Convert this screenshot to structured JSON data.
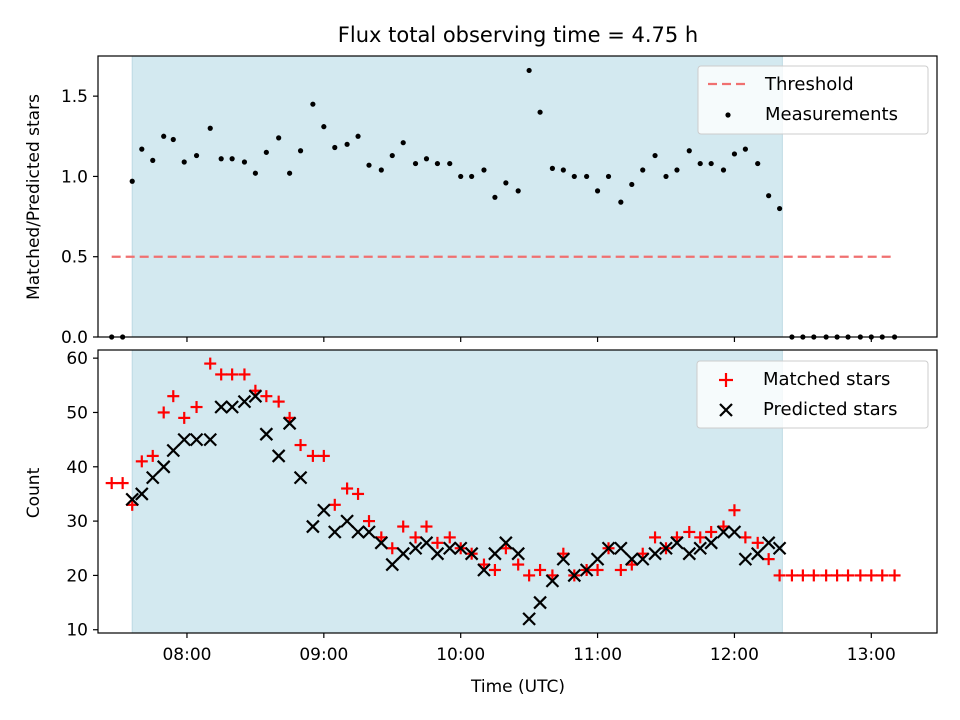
{
  "chart_data": [
    {
      "type": "scatter",
      "title": "Flux total observing time = 4.75 h",
      "xlabel": "",
      "ylabel": "Matched/Predicted stars",
      "ylim": [
        0,
        1.75
      ],
      "y_ticks": [
        "0.0",
        "0.5",
        "1.0",
        "1.5"
      ],
      "x_ticks_hours": [
        8,
        9,
        10,
        11,
        12,
        13
      ],
      "xlim_hours": [
        7.35,
        13.48
      ],
      "shaded_region_hours": [
        7.6,
        12.35
      ],
      "shade_color": "#d3e9f0",
      "legend_position": "top-right",
      "threshold": {
        "name": "Threshold",
        "y": 0.5,
        "x_range_hours": [
          7.45,
          13.15
        ],
        "color": "#f07070"
      },
      "series": [
        {
          "name": "Measurements",
          "marker": "dot",
          "color": "#000000",
          "points": [
            [
              7.45,
              0.0
            ],
            [
              7.53,
              0.0
            ],
            [
              7.6,
              0.97
            ],
            [
              7.67,
              1.17
            ],
            [
              7.75,
              1.1
            ],
            [
              7.83,
              1.25
            ],
            [
              7.9,
              1.23
            ],
            [
              7.98,
              1.09
            ],
            [
              8.07,
              1.13
            ],
            [
              8.17,
              1.3
            ],
            [
              8.25,
              1.11
            ],
            [
              8.33,
              1.11
            ],
            [
              8.42,
              1.09
            ],
            [
              8.5,
              1.02
            ],
            [
              8.58,
              1.15
            ],
            [
              8.67,
              1.24
            ],
            [
              8.75,
              1.02
            ],
            [
              8.83,
              1.16
            ],
            [
              8.92,
              1.45
            ],
            [
              9.0,
              1.31
            ],
            [
              9.08,
              1.18
            ],
            [
              9.17,
              1.2
            ],
            [
              9.25,
              1.25
            ],
            [
              9.33,
              1.07
            ],
            [
              9.42,
              1.04
            ],
            [
              9.5,
              1.13
            ],
            [
              9.58,
              1.21
            ],
            [
              9.67,
              1.08
            ],
            [
              9.75,
              1.11
            ],
            [
              9.83,
              1.08
            ],
            [
              9.92,
              1.08
            ],
            [
              10.0,
              1.0
            ],
            [
              10.08,
              1.0
            ],
            [
              10.17,
              1.04
            ],
            [
              10.25,
              0.87
            ],
            [
              10.33,
              0.96
            ],
            [
              10.42,
              0.91
            ],
            [
              10.5,
              1.66
            ],
            [
              10.58,
              1.4
            ],
            [
              10.67,
              1.05
            ],
            [
              10.75,
              1.04
            ],
            [
              10.83,
              1.0
            ],
            [
              10.92,
              1.0
            ],
            [
              11.0,
              0.91
            ],
            [
              11.08,
              1.0
            ],
            [
              11.17,
              0.84
            ],
            [
              11.25,
              0.95
            ],
            [
              11.33,
              1.04
            ],
            [
              11.42,
              1.13
            ],
            [
              11.5,
              1.0
            ],
            [
              11.58,
              1.04
            ],
            [
              11.67,
              1.16
            ],
            [
              11.75,
              1.08
            ],
            [
              11.83,
              1.08
            ],
            [
              11.92,
              1.04
            ],
            [
              12.0,
              1.14
            ],
            [
              12.08,
              1.17
            ],
            [
              12.17,
              1.08
            ],
            [
              12.25,
              0.88
            ],
            [
              12.33,
              0.8
            ],
            [
              12.42,
              0.0
            ],
            [
              12.5,
              0.0
            ],
            [
              12.58,
              0.0
            ],
            [
              12.67,
              0.0
            ],
            [
              12.75,
              0.0
            ],
            [
              12.83,
              0.0
            ],
            [
              12.92,
              0.0
            ],
            [
              13.0,
              0.0
            ],
            [
              13.08,
              0.0
            ],
            [
              13.17,
              0.0
            ]
          ]
        }
      ]
    },
    {
      "type": "scatter",
      "xlabel": "Time (UTC)",
      "ylabel": "Count",
      "ylim": [
        9.4,
        61.5
      ],
      "y_ticks": [
        "10",
        "20",
        "30",
        "40",
        "50",
        "60"
      ],
      "x_tick_labels": [
        "08:00",
        "09:00",
        "10:00",
        "11:00",
        "12:00",
        "13:00"
      ],
      "x_ticks_hours": [
        8,
        9,
        10,
        11,
        12,
        13
      ],
      "xlim_hours": [
        7.35,
        13.48
      ],
      "shaded_region_hours": [
        7.6,
        12.35
      ],
      "legend_position": "top-right",
      "series": [
        {
          "name": "Matched stars",
          "marker": "plus",
          "color": "#ff0000",
          "points": [
            [
              7.45,
              37
            ],
            [
              7.53,
              37
            ],
            [
              7.6,
              33
            ],
            [
              7.67,
              41
            ],
            [
              7.75,
              42
            ],
            [
              7.83,
              50
            ],
            [
              7.9,
              53
            ],
            [
              7.98,
              49
            ],
            [
              8.07,
              51
            ],
            [
              8.17,
              59
            ],
            [
              8.25,
              57
            ],
            [
              8.33,
              57
            ],
            [
              8.42,
              57
            ],
            [
              8.5,
              54
            ],
            [
              8.58,
              53
            ],
            [
              8.67,
              52
            ],
            [
              8.75,
              49
            ],
            [
              8.83,
              44
            ],
            [
              8.92,
              42
            ],
            [
              9.0,
              42
            ],
            [
              9.08,
              33
            ],
            [
              9.17,
              36
            ],
            [
              9.25,
              35
            ],
            [
              9.33,
              30
            ],
            [
              9.42,
              27
            ],
            [
              9.5,
              25
            ],
            [
              9.58,
              29
            ],
            [
              9.67,
              27
            ],
            [
              9.75,
              29
            ],
            [
              9.83,
              26
            ],
            [
              9.92,
              27
            ],
            [
              10.0,
              25
            ],
            [
              10.08,
              24
            ],
            [
              10.17,
              22
            ],
            [
              10.25,
              21
            ],
            [
              10.33,
              25
            ],
            [
              10.42,
              22
            ],
            [
              10.5,
              20
            ],
            [
              10.58,
              21
            ],
            [
              10.67,
              20
            ],
            [
              10.75,
              24
            ],
            [
              10.83,
              20
            ],
            [
              10.92,
              21
            ],
            [
              11.0,
              21
            ],
            [
              11.08,
              25
            ],
            [
              11.17,
              21
            ],
            [
              11.25,
              22
            ],
            [
              11.33,
              24
            ],
            [
              11.42,
              27
            ],
            [
              11.5,
              25
            ],
            [
              11.58,
              27
            ],
            [
              11.67,
              28
            ],
            [
              11.75,
              27
            ],
            [
              11.83,
              28
            ],
            [
              11.92,
              29
            ],
            [
              12.0,
              32
            ],
            [
              12.08,
              27
            ],
            [
              12.17,
              26
            ],
            [
              12.25,
              23
            ],
            [
              12.33,
              20
            ],
            [
              12.42,
              20
            ],
            [
              12.5,
              20
            ],
            [
              12.58,
              20
            ],
            [
              12.67,
              20
            ],
            [
              12.75,
              20
            ],
            [
              12.83,
              20
            ],
            [
              12.92,
              20
            ],
            [
              13.0,
              20
            ],
            [
              13.08,
              20
            ],
            [
              13.17,
              20
            ]
          ]
        },
        {
          "name": "Predicted stars",
          "marker": "x",
          "color": "#000000",
          "points": [
            [
              7.6,
              34
            ],
            [
              7.67,
              35
            ],
            [
              7.75,
              38
            ],
            [
              7.83,
              40
            ],
            [
              7.9,
              43
            ],
            [
              7.98,
              45
            ],
            [
              8.07,
              45
            ],
            [
              8.17,
              45
            ],
            [
              8.25,
              51
            ],
            [
              8.33,
              51
            ],
            [
              8.42,
              52
            ],
            [
              8.5,
              53
            ],
            [
              8.58,
              46
            ],
            [
              8.67,
              42
            ],
            [
              8.75,
              48
            ],
            [
              8.83,
              38
            ],
            [
              8.92,
              29
            ],
            [
              9.0,
              32
            ],
            [
              9.08,
              28
            ],
            [
              9.17,
              30
            ],
            [
              9.25,
              28
            ],
            [
              9.33,
              28
            ],
            [
              9.42,
              26
            ],
            [
              9.5,
              22
            ],
            [
              9.58,
              24
            ],
            [
              9.67,
              25
            ],
            [
              9.75,
              26
            ],
            [
              9.83,
              24
            ],
            [
              9.92,
              25
            ],
            [
              10.0,
              25
            ],
            [
              10.08,
              24
            ],
            [
              10.17,
              21
            ],
            [
              10.25,
              24
            ],
            [
              10.33,
              26
            ],
            [
              10.42,
              24
            ],
            [
              10.5,
              12
            ],
            [
              10.58,
              15
            ],
            [
              10.67,
              19
            ],
            [
              10.75,
              23
            ],
            [
              10.83,
              20
            ],
            [
              10.92,
              21
            ],
            [
              11.0,
              23
            ],
            [
              11.08,
              25
            ],
            [
              11.17,
              25
            ],
            [
              11.25,
              23
            ],
            [
              11.33,
              23
            ],
            [
              11.42,
              24
            ],
            [
              11.5,
              25
            ],
            [
              11.58,
              26
            ],
            [
              11.67,
              24
            ],
            [
              11.75,
              25
            ],
            [
              11.83,
              26
            ],
            [
              11.92,
              28
            ],
            [
              12.0,
              28
            ],
            [
              12.08,
              23
            ],
            [
              12.17,
              24
            ],
            [
              12.25,
              26
            ],
            [
              12.33,
              25
            ]
          ]
        }
      ]
    }
  ]
}
